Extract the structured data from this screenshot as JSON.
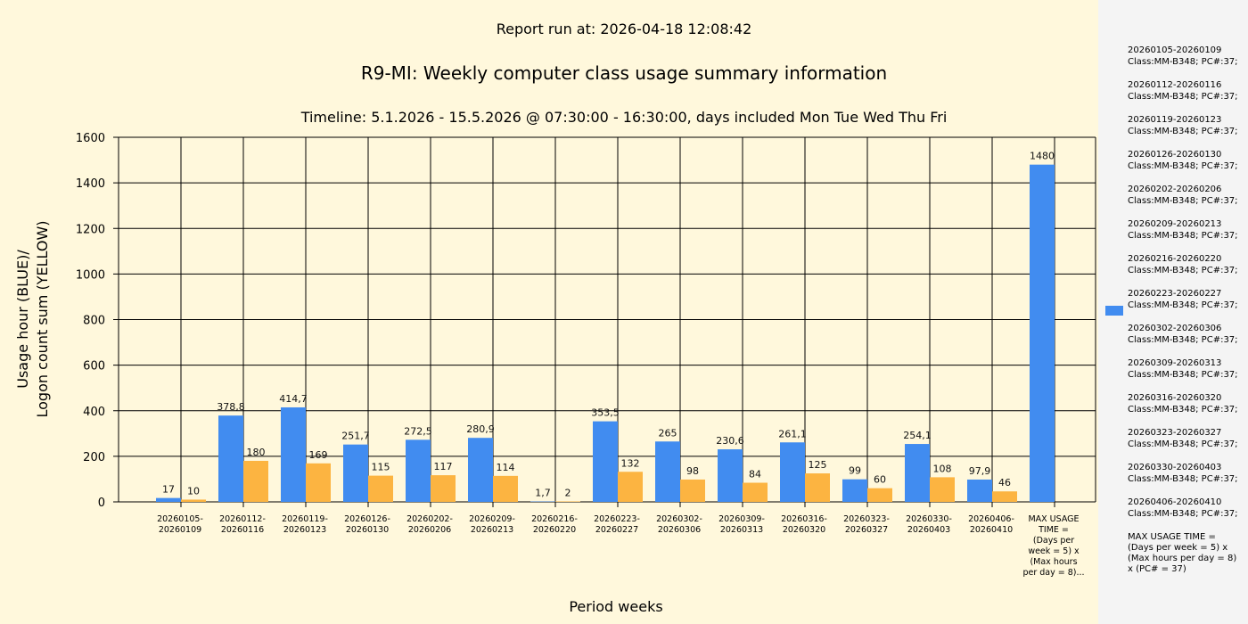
{
  "header": {
    "report_run": "Report run at: 2026-04-18 12:08:42"
  },
  "chart_data": {
    "type": "bar",
    "title": "R9-MI: Weekly computer class usage summary information",
    "subtitle": "Timeline:  5.1.2026  - 15.5.2026  @  07:30:00 -  16:30:00, days included Mon Tue Wed Thu Fri",
    "xlabel": "Period weeks",
    "ylabel_line1": "Usage hour (BLUE)/",
    "ylabel_line2": "Logon count sum (YELLOW)",
    "ylim": [
      0,
      1600
    ],
    "yticks": [
      0,
      200,
      400,
      600,
      800,
      1000,
      1200,
      1400,
      1600
    ],
    "grid": true,
    "categories": [
      [
        "20260105-",
        "20260109"
      ],
      [
        "20260112-",
        "20260116"
      ],
      [
        "20260119-",
        "20260123"
      ],
      [
        "20260126-",
        "20260130"
      ],
      [
        "20260202-",
        "20260206"
      ],
      [
        "20260209-",
        "20260213"
      ],
      [
        "20260216-",
        "20260220"
      ],
      [
        "20260223-",
        "20260227"
      ],
      [
        "20260302-",
        "20260306"
      ],
      [
        "20260309-",
        "20260313"
      ],
      [
        "20260316-",
        "20260320"
      ],
      [
        "20260323-",
        "20260327"
      ],
      [
        "20260330-",
        "20260403"
      ],
      [
        "20260406-",
        "20260410"
      ],
      [
        "MAX USAGE",
        "TIME =",
        "(Days per",
        "week = 5) x",
        "(Max hours",
        "per day = 8)..."
      ]
    ],
    "series": [
      {
        "name": "Usage hour",
        "color": "#418cf0",
        "values": [
          17,
          378.8,
          414.7,
          251.7,
          272.5,
          280.9,
          1.7,
          353.5,
          265,
          230.6,
          261.1,
          99,
          254.1,
          97.9,
          1480
        ],
        "labels": [
          "17",
          "378,8",
          "414,7",
          "251,7",
          "272,5",
          "280,9",
          "1,7",
          "353,5",
          "265",
          "230,6",
          "261,1",
          "99",
          "254,1",
          "97,9",
          "1480"
        ]
      },
      {
        "name": "Logon count sum",
        "color": "#fcb441",
        "values": [
          10,
          180,
          169,
          115,
          117,
          114,
          2,
          132,
          98,
          84,
          125,
          60,
          108,
          46,
          null
        ],
        "labels": [
          "10",
          "180",
          "169",
          "115",
          "117",
          "114",
          "2",
          "132",
          "98",
          "84",
          "125",
          "60",
          "108",
          "46",
          null
        ]
      }
    ],
    "legend_placement": "right"
  },
  "legend": {
    "items": [
      [
        "20260105-20260109",
        "Class:MM-B348; PC#:37;"
      ],
      [
        "20260112-20260116",
        "Class:MM-B348; PC#:37;"
      ],
      [
        "20260119-20260123",
        "Class:MM-B348; PC#:37;"
      ],
      [
        "20260126-20260130",
        "Class:MM-B348; PC#:37;"
      ],
      [
        "20260202-20260206",
        "Class:MM-B348; PC#:37;"
      ],
      [
        "20260209-20260213",
        "Class:MM-B348; PC#:37;"
      ],
      [
        "20260216-20260220",
        "Class:MM-B348; PC#:37;"
      ],
      [
        "20260223-20260227",
        "Class:MM-B348; PC#:37;"
      ],
      [
        "20260302-20260306",
        "Class:MM-B348; PC#:37;"
      ],
      [
        "20260309-20260313",
        "Class:MM-B348; PC#:37;"
      ],
      [
        "20260316-20260320",
        "Class:MM-B348; PC#:37;"
      ],
      [
        "20260323-20260327",
        "Class:MM-B348; PC#:37;"
      ],
      [
        "20260330-20260403",
        "Class:MM-B348; PC#:37;"
      ],
      [
        "20260406-20260410",
        "Class:MM-B348; PC#:37;"
      ]
    ],
    "max_note": "MAX USAGE TIME = (Days per week = 5) x (Max hours per day = 8) x (PC# = 37)"
  }
}
